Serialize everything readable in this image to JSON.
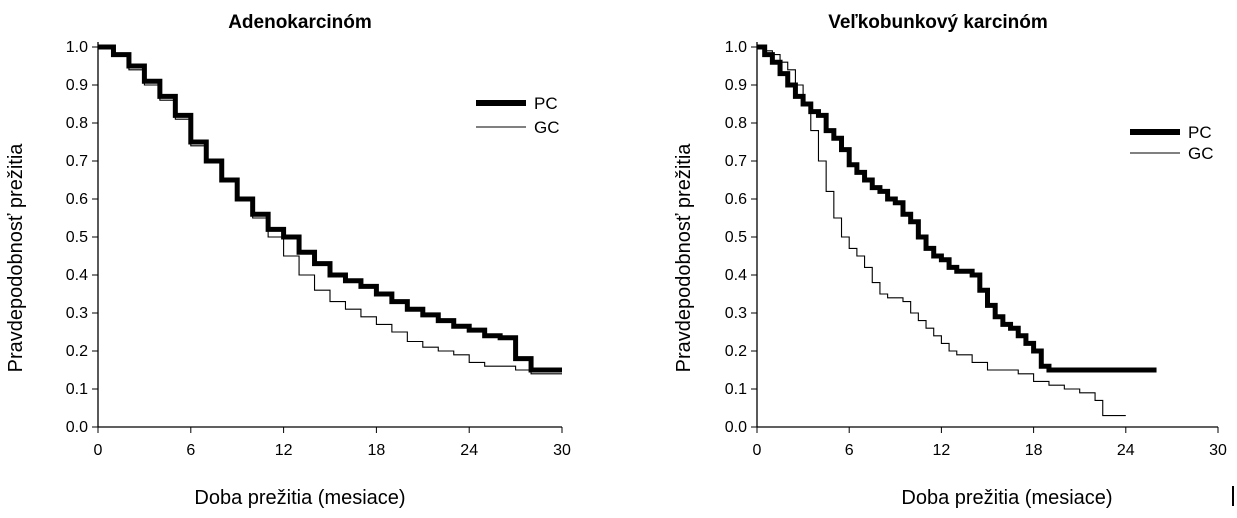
{
  "chart_data": [
    {
      "type": "line",
      "title": "Adenokarcinóm",
      "xlabel": "Doba prežitia (mesiace)",
      "ylabel": "Pravdepodobnosť prežitia",
      "xlim": [
        0,
        30
      ],
      "ylim": [
        0,
        1
      ],
      "xticks": [
        "0",
        "6",
        "12",
        "18",
        "24",
        "30"
      ],
      "yticks": [
        "0.0",
        "0.1",
        "0.2",
        "0.3",
        "0.4",
        "0.5",
        "0.6",
        "0.7",
        "0.8",
        "0.9",
        "1.0"
      ],
      "grid": false,
      "legend": "top-right",
      "series": [
        {
          "name": "PC",
          "style": "thick",
          "x": [
            0,
            1,
            2,
            3,
            4,
            5,
            6,
            7,
            8,
            9,
            10,
            11,
            12,
            13,
            14,
            15,
            16,
            17,
            18,
            19,
            20,
            21,
            22,
            23,
            24,
            25,
            26,
            27,
            28,
            29,
            30
          ],
          "y": [
            1.0,
            0.98,
            0.95,
            0.91,
            0.87,
            0.82,
            0.75,
            0.7,
            0.65,
            0.6,
            0.56,
            0.52,
            0.5,
            0.46,
            0.43,
            0.4,
            0.385,
            0.37,
            0.35,
            0.33,
            0.31,
            0.295,
            0.28,
            0.265,
            0.255,
            0.24,
            0.235,
            0.18,
            0.15,
            0.15,
            0.15
          ]
        },
        {
          "name": "GC",
          "style": "thin",
          "x": [
            0,
            1,
            2,
            3,
            4,
            5,
            6,
            7,
            8,
            9,
            10,
            11,
            12,
            13,
            14,
            15,
            16,
            17,
            18,
            19,
            20,
            21,
            22,
            23,
            24,
            25,
            26,
            27,
            28,
            29,
            30
          ],
          "y": [
            1.0,
            0.98,
            0.94,
            0.9,
            0.86,
            0.81,
            0.74,
            0.7,
            0.65,
            0.6,
            0.55,
            0.5,
            0.45,
            0.4,
            0.36,
            0.33,
            0.31,
            0.29,
            0.27,
            0.25,
            0.225,
            0.21,
            0.2,
            0.19,
            0.17,
            0.16,
            0.16,
            0.15,
            0.14,
            0.14,
            0.14
          ]
        }
      ]
    },
    {
      "type": "line",
      "title": "Veľkobunkový karcinóm",
      "xlabel": "Doba prežitia (mesiace)",
      "ylabel": "Pravdepodobnosť prežitia",
      "xlim": [
        0,
        30
      ],
      "ylim": [
        0,
        1
      ],
      "xticks": [
        "0",
        "6",
        "12",
        "18",
        "24",
        "30"
      ],
      "yticks": [
        "0.0",
        "0.1",
        "0.2",
        "0.3",
        "0.4",
        "0.5",
        "0.6",
        "0.7",
        "0.8",
        "0.9",
        "1.0"
      ],
      "grid": false,
      "legend": "top-right",
      "series": [
        {
          "name": "PC",
          "style": "thick",
          "x": [
            0,
            0.5,
            1,
            1.5,
            2,
            2.5,
            3,
            3.5,
            4,
            4.5,
            5,
            5.5,
            6,
            6.5,
            7,
            7.5,
            8,
            8.5,
            9,
            9.5,
            10,
            10.5,
            11,
            11.5,
            12,
            12.5,
            13,
            13.5,
            14,
            14.5,
            15,
            15.5,
            16,
            16.5,
            17,
            17.5,
            18,
            18.5,
            19,
            20,
            22,
            24,
            26
          ],
          "y": [
            1.0,
            0.98,
            0.96,
            0.93,
            0.9,
            0.87,
            0.85,
            0.83,
            0.82,
            0.78,
            0.76,
            0.73,
            0.69,
            0.67,
            0.65,
            0.63,
            0.62,
            0.6,
            0.59,
            0.56,
            0.54,
            0.5,
            0.47,
            0.45,
            0.44,
            0.42,
            0.41,
            0.41,
            0.4,
            0.36,
            0.32,
            0.29,
            0.27,
            0.26,
            0.24,
            0.22,
            0.2,
            0.16,
            0.15,
            0.15,
            0.15,
            0.15,
            0.15
          ]
        },
        {
          "name": "GC",
          "style": "thin",
          "x": [
            0,
            0.5,
            1,
            1.5,
            2,
            2.5,
            3,
            3.5,
            4,
            4.5,
            5,
            5.5,
            6,
            6.5,
            7,
            7.5,
            8,
            8.5,
            9,
            9.5,
            10,
            10.5,
            11,
            11.5,
            12,
            12.5,
            13,
            14,
            15,
            16,
            17,
            18,
            19,
            20,
            21,
            22,
            22.5,
            23,
            24
          ],
          "y": [
            1.0,
            0.99,
            0.98,
            0.96,
            0.94,
            0.9,
            0.85,
            0.78,
            0.7,
            0.62,
            0.55,
            0.5,
            0.47,
            0.45,
            0.42,
            0.38,
            0.35,
            0.34,
            0.34,
            0.33,
            0.3,
            0.28,
            0.26,
            0.24,
            0.22,
            0.2,
            0.19,
            0.17,
            0.15,
            0.15,
            0.14,
            0.12,
            0.11,
            0.1,
            0.09,
            0.07,
            0.03,
            0.03,
            0.03
          ]
        }
      ]
    }
  ]
}
